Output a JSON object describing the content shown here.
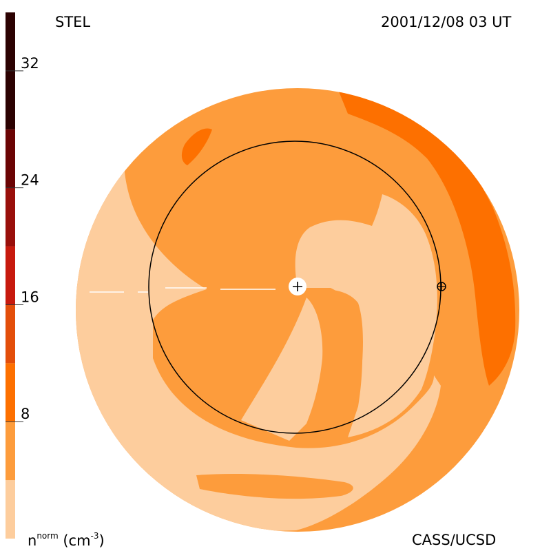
{
  "header": {
    "label_left": "STEL",
    "label_right": "2001/12/08 03 UT"
  },
  "footer": {
    "label_right": "CASS/UCSD",
    "unit_base": "n",
    "unit_sup": "norm",
    "unit_paren_open": " (cm",
    "unit_exp": "-3",
    "unit_paren_close": ")"
  },
  "colors": {
    "level_0": "#fdcd9d",
    "level_1": "#fd9c3c",
    "level_2": "#fd7000",
    "level_3": "#e34e0a",
    "level_4": "#c71a0e",
    "level_5": "#990f0b",
    "level_6": "#6b0404",
    "level_7": "#2c0202",
    "outline": "#000000"
  },
  "chart_data": {
    "type": "heatmap",
    "title": "",
    "colorbar": {
      "min": 0,
      "max": 36,
      "tick_values": [
        8,
        16,
        24,
        32
      ],
      "tick_labels": [
        "8",
        "16",
        "24",
        "32"
      ],
      "levels": [
        {
          "from": 0,
          "to": 4
        },
        {
          "from": 4,
          "to": 8
        },
        {
          "from": 8,
          "to": 12
        },
        {
          "from": 12,
          "to": 16
        },
        {
          "from": 16,
          "to": 20
        },
        {
          "from": 20,
          "to": 24
        },
        {
          "from": 24,
          "to": 28
        },
        {
          "from": 28,
          "to": 36
        }
      ]
    },
    "markers": [
      "sun-marker",
      "earth-marker",
      "earth-orbit"
    ]
  }
}
